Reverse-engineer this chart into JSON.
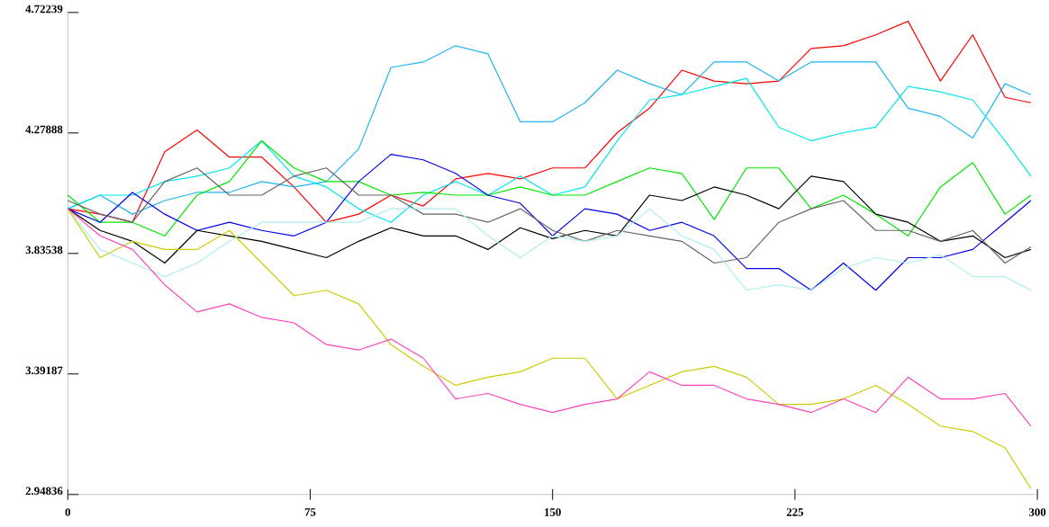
{
  "chart_data": {
    "type": "line",
    "x": [
      0,
      10,
      20,
      30,
      40,
      50,
      60,
      70,
      80,
      90,
      100,
      110,
      120,
      130,
      140,
      150,
      160,
      170,
      180,
      190,
      200,
      210,
      220,
      230,
      240,
      250,
      260,
      270,
      280,
      290,
      298
    ],
    "xlim": [
      0,
      300
    ],
    "xticks": [
      0,
      75,
      150,
      225,
      300
    ],
    "ylim": [
      2.94836,
      4.72239
    ],
    "yticks": [
      2.94836,
      3.39187,
      3.83538,
      4.27888,
      4.72239
    ],
    "series": [
      {
        "color": "#ff0000",
        "values": [
          4.0,
          3.98,
          3.95,
          4.21,
          4.29,
          4.19,
          4.19,
          4.08,
          3.95,
          3.98,
          4.05,
          4.01,
          4.11,
          4.13,
          4.11,
          4.15,
          4.15,
          4.28,
          4.37,
          4.51,
          4.47,
          4.46,
          4.47,
          4.59,
          4.6,
          4.64,
          4.69,
          4.47,
          4.64,
          4.41,
          4.39
        ]
      },
      {
        "color": "#1eb4f0",
        "values": [
          4.0,
          4.05,
          3.98,
          4.03,
          4.06,
          4.06,
          4.1,
          4.08,
          4.1,
          4.22,
          4.52,
          4.54,
          4.6,
          4.57,
          4.32,
          4.32,
          4.39,
          4.51,
          4.46,
          4.42,
          4.54,
          4.54,
          4.47,
          4.54,
          4.54,
          4.54,
          4.37,
          4.34,
          4.26,
          4.46,
          4.42
        ]
      },
      {
        "color": "#00e5ee",
        "values": [
          4.0,
          4.05,
          4.05,
          4.1,
          4.12,
          4.15,
          4.25,
          4.12,
          4.08,
          4.0,
          3.95,
          4.05,
          4.1,
          4.05,
          4.12,
          4.05,
          4.08,
          4.25,
          4.4,
          4.42,
          4.45,
          4.48,
          4.3,
          4.25,
          4.28,
          4.3,
          4.45,
          4.43,
          4.4,
          4.25,
          4.12
        ]
      },
      {
        "color": "#00e600",
        "values": [
          4.05,
          3.95,
          3.95,
          3.9,
          4.05,
          4.1,
          4.25,
          4.15,
          4.1,
          4.1,
          4.05,
          4.06,
          4.05,
          4.05,
          4.08,
          4.05,
          4.05,
          4.1,
          4.15,
          4.13,
          3.96,
          4.15,
          4.15,
          4.0,
          4.05,
          3.98,
          3.9,
          4.08,
          4.17,
          3.98,
          4.05
        ]
      },
      {
        "color": "#0000ee",
        "values": [
          4.0,
          3.95,
          4.06,
          3.98,
          3.92,
          3.95,
          3.92,
          3.9,
          3.95,
          4.1,
          4.2,
          4.18,
          4.13,
          4.05,
          4.02,
          3.9,
          4.0,
          3.98,
          3.92,
          3.95,
          3.9,
          3.78,
          3.78,
          3.7,
          3.8,
          3.7,
          3.82,
          3.82,
          3.85,
          3.95,
          4.03
        ]
      },
      {
        "color": "#000000",
        "values": [
          4.0,
          3.92,
          3.88,
          3.8,
          3.92,
          3.9,
          3.88,
          3.85,
          3.82,
          3.88,
          3.93,
          3.9,
          3.9,
          3.85,
          3.93,
          3.89,
          3.92,
          3.9,
          4.05,
          4.03,
          4.08,
          4.05,
          4.0,
          4.12,
          4.1,
          3.98,
          3.95,
          3.88,
          3.9,
          3.82,
          3.85
        ]
      },
      {
        "color": "#666666",
        "values": [
          4.03,
          3.98,
          3.95,
          4.1,
          4.15,
          4.05,
          4.05,
          4.12,
          4.15,
          4.05,
          4.05,
          3.98,
          3.98,
          3.95,
          4.0,
          3.92,
          3.88,
          3.92,
          3.9,
          3.88,
          3.8,
          3.82,
          3.95,
          4.0,
          4.03,
          3.92,
          3.92,
          3.88,
          3.92,
          3.8,
          3.86
        ]
      },
      {
        "color": "#aeeeee",
        "values": [
          4.0,
          3.85,
          3.8,
          3.75,
          3.8,
          3.88,
          3.95,
          3.95,
          3.95,
          3.95,
          4.0,
          4.0,
          4.0,
          3.9,
          3.82,
          3.9,
          3.88,
          3.9,
          4.0,
          3.9,
          3.85,
          3.7,
          3.72,
          3.7,
          3.78,
          3.82,
          3.8,
          3.83,
          3.75,
          3.75,
          3.7
        ]
      },
      {
        "color": "#cccc00",
        "values": [
          4.0,
          3.82,
          3.88,
          3.85,
          3.85,
          3.92,
          3.8,
          3.68,
          3.7,
          3.65,
          3.5,
          3.42,
          3.35,
          3.38,
          3.4,
          3.45,
          3.45,
          3.3,
          3.35,
          3.4,
          3.42,
          3.38,
          3.28,
          3.28,
          3.3,
          3.35,
          3.28,
          3.2,
          3.18,
          3.12,
          2.97
        ]
      },
      {
        "color": "#ff44bb",
        "values": [
          4.0,
          3.9,
          3.85,
          3.72,
          3.62,
          3.65,
          3.6,
          3.58,
          3.5,
          3.48,
          3.52,
          3.45,
          3.3,
          3.32,
          3.28,
          3.25,
          3.28,
          3.3,
          3.4,
          3.35,
          3.35,
          3.3,
          3.28,
          3.25,
          3.3,
          3.25,
          3.38,
          3.3,
          3.3,
          3.32,
          3.2
        ]
      }
    ]
  }
}
